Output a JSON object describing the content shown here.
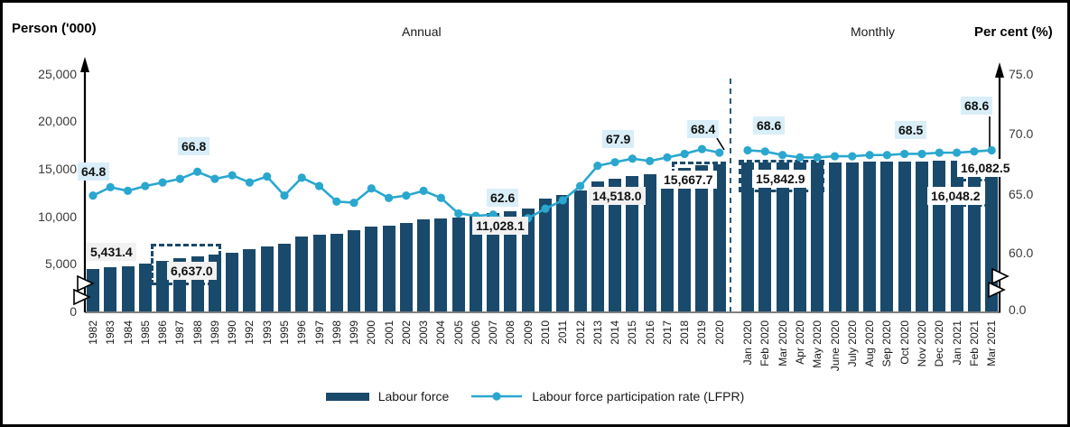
{
  "titles": {
    "left_axis_title": "Person ('000)",
    "annual_section": "Annual",
    "monthly_section": "Monthly",
    "right_axis_title": "Per cent (%)"
  },
  "left_axis": {
    "ticks": [
      "25,000",
      "20,000",
      "15,000",
      "10,000",
      "5,000",
      "0"
    ],
    "break": true
  },
  "right_axis": {
    "ticks": [
      "75.0",
      "70.0",
      "65.0",
      "60.0",
      "0.0"
    ],
    "break": true
  },
  "legend": {
    "bar_label": "Labour force",
    "line_label": "Labour force participation rate (LFPR)"
  },
  "colors": {
    "bar": "#1A4A6B",
    "line": "#2AA7CF",
    "lfpr_label_bg": "#D9EEF8",
    "value_label_bg": "#F1F1F1",
    "divider": "#2A5A7A"
  },
  "chart_data": {
    "type": "bar+line",
    "title": "",
    "left_axis_range": [
      0,
      25000
    ],
    "right_axis_range": [
      0,
      75
    ],
    "annual": {
      "categories": [
        "1982",
        "1983",
        "1984",
        "1985",
        "1986",
        "1987",
        "1988",
        "1989",
        "1990",
        "1992",
        "1993",
        "1995",
        "1996",
        "1997",
        "1998",
        "1999",
        "2000",
        "2001",
        "2002",
        "2003",
        "2004",
        "2005",
        "2006",
        "2007",
        "2008",
        "2009",
        "2010",
        "2011",
        "2012",
        "2013",
        "2014",
        "2015",
        "2016",
        "2017",
        "2018",
        "2019",
        "2020"
      ],
      "series": [
        {
          "name": "Labour force ('000)",
          "type": "bar",
          "values": [
            5431.4,
            5577,
            5735,
            5990,
            6222,
            6457,
            6637.0,
            6850,
            7042,
            7370,
            7627,
            7893,
            8641,
            8784,
            8884,
            9178,
            9573,
            9699,
            9887,
            10240,
            10346,
            10413,
            10629,
            10890,
            11028.1,
            11315,
            12304,
            12676,
            13120,
            14013,
            14264,
            14518.0,
            14668,
            14980,
            15280,
            15582,
            15667.7
          ]
        },
        {
          "name": "Labour force participation rate (%)",
          "type": "line",
          "values": [
            64.8,
            65.5,
            65.2,
            65.6,
            65.9,
            66.2,
            66.8,
            66.2,
            66.5,
            65.9,
            66.4,
            64.8,
            66.3,
            65.6,
            64.3,
            64.2,
            65.4,
            64.6,
            64.8,
            65.2,
            64.6,
            63.3,
            63.1,
            63.2,
            62.6,
            62.9,
            63.7,
            64.4,
            65.6,
            67.3,
            67.6,
            67.9,
            67.7,
            68.0,
            68.3,
            68.7,
            68.4
          ]
        }
      ]
    },
    "monthly": {
      "categories": [
        "Jan 2020",
        "Feb 2020",
        "Mar 2020",
        "Apr 2020",
        "May 2020",
        "June 2020",
        "July 2020",
        "Aug 2020",
        "Sep 2020",
        "Oct 2020",
        "Nov 2020",
        "Dec 2020",
        "Jan 2021",
        "Feb 2021",
        "Mar 2021"
      ],
      "series": [
        {
          "name": "Labour force ('000)",
          "type": "bar",
          "values": [
            15842.9,
            15860,
            15820,
            15780,
            15790,
            15810,
            15840,
            15870,
            15900,
            15930,
            15950,
            15970,
            15990,
            16048.2,
            16082.5
          ]
        },
        {
          "name": "Labour force participation rate (%)",
          "type": "line",
          "values": [
            68.6,
            68.5,
            68.2,
            68.0,
            68.0,
            68.1,
            68.1,
            68.2,
            68.2,
            68.3,
            68.3,
            68.4,
            68.4,
            68.5,
            68.6
          ]
        }
      ]
    },
    "annotations": [
      {
        "id": "lfpr_1982",
        "text": "64.8",
        "series": "lfpr",
        "target": "1982"
      },
      {
        "id": "lfpr_1988",
        "text": "66.8",
        "series": "lfpr",
        "target": "1988"
      },
      {
        "id": "lfpr_2008",
        "text": "62.6",
        "series": "lfpr",
        "target": "2008"
      },
      {
        "id": "lfpr_2015",
        "text": "67.9",
        "series": "lfpr",
        "target": "2015"
      },
      {
        "id": "lfpr_2020",
        "text": "68.4",
        "series": "lfpr",
        "target": "2020"
      },
      {
        "id": "lfpr_jan2020",
        "text": "68.6",
        "series": "lfpr",
        "target": "Jan 2020"
      },
      {
        "id": "lfpr_feb2021",
        "text": "68.5",
        "series": "lfpr",
        "target": "Feb 2021"
      },
      {
        "id": "lfpr_mar2021",
        "text": "68.6",
        "series": "lfpr",
        "target": "Mar 2021"
      },
      {
        "id": "lf_1982",
        "text": "5,431.4",
        "series": "labour_force",
        "target": "1982"
      },
      {
        "id": "lf_1988",
        "text": "6,637.0",
        "series": "labour_force",
        "target": "1988"
      },
      {
        "id": "lf_2008",
        "text": "11,028.1",
        "series": "labour_force",
        "target": "2008"
      },
      {
        "id": "lf_2015",
        "text": "14,518.0",
        "series": "labour_force",
        "target": "2015"
      },
      {
        "id": "lf_2020",
        "text": "15,667.7",
        "series": "labour_force",
        "target": "2020"
      },
      {
        "id": "lf_jan2020",
        "text": "15,842.9",
        "series": "labour_force",
        "target": "Jan 2020"
      },
      {
        "id": "lf_feb2021",
        "text": "16,048.2",
        "series": "labour_force",
        "target": "Feb 2021"
      },
      {
        "id": "lf_mar2021",
        "text": "16,082.5",
        "series": "labour_force",
        "target": "Mar 2021"
      }
    ]
  }
}
